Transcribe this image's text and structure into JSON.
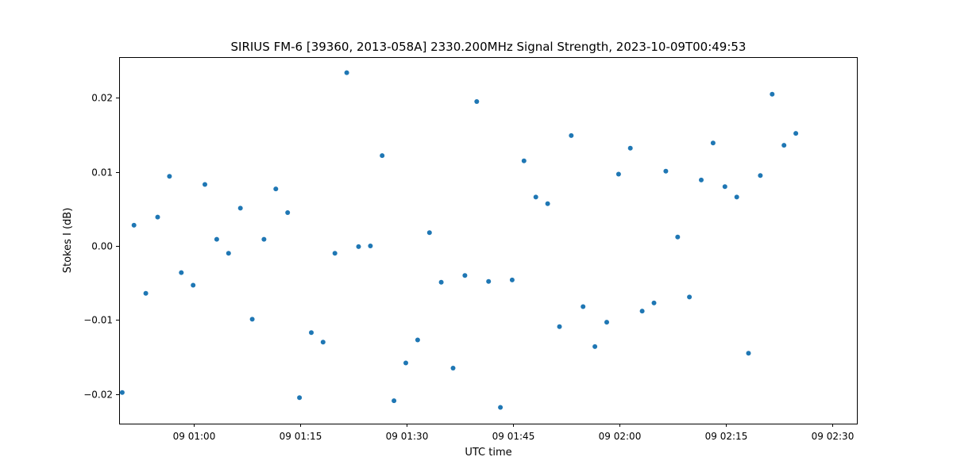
{
  "chart_data": {
    "type": "scatter",
    "title": "SIRIUS FM-6 [39360, 2013-058A] 2330.200MHz Signal Strength, 2023-10-09T00:49:53",
    "xlabel": "UTC time",
    "ylabel": "Stokes I (dB)",
    "xlim": [
      "2023-10-09T00:49:27",
      "2023-10-09T02:33:30"
    ],
    "ylim": [
      -0.024,
      0.0255
    ],
    "x_ticks": [
      {
        "value": "2023-10-09T01:00:00",
        "label": "09 01:00"
      },
      {
        "value": "2023-10-09T01:15:00",
        "label": "09 01:15"
      },
      {
        "value": "2023-10-09T01:30:00",
        "label": "09 01:30"
      },
      {
        "value": "2023-10-09T01:45:00",
        "label": "09 01:45"
      },
      {
        "value": "2023-10-09T02:00:00",
        "label": "09 02:00"
      },
      {
        "value": "2023-10-09T02:15:00",
        "label": "09 02:15"
      },
      {
        "value": "2023-10-09T02:30:00",
        "label": "09 02:30"
      }
    ],
    "y_ticks": [
      {
        "value": -0.02,
        "label": "−0.02"
      },
      {
        "value": -0.01,
        "label": "−0.01"
      },
      {
        "value": 0.0,
        "label": "0.00"
      },
      {
        "value": 0.01,
        "label": "0.01"
      },
      {
        "value": 0.02,
        "label": "0.02"
      }
    ],
    "grid": false,
    "color": "#1f77b4",
    "points": [
      {
        "x": "2023-10-09T00:49:53",
        "y": -0.0198
      },
      {
        "x": "2023-10-09T00:51:33",
        "y": 0.0028
      },
      {
        "x": "2023-10-09T00:53:13",
        "y": -0.0064
      },
      {
        "x": "2023-10-09T00:54:53",
        "y": 0.0039
      },
      {
        "x": "2023-10-09T00:56:33",
        "y": 0.0094
      },
      {
        "x": "2023-10-09T00:58:13",
        "y": -0.0036
      },
      {
        "x": "2023-10-09T00:59:53",
        "y": -0.0053
      },
      {
        "x": "2023-10-09T01:01:33",
        "y": 0.0083
      },
      {
        "x": "2023-10-09T01:03:13",
        "y": 0.0009
      },
      {
        "x": "2023-10-09T01:04:53",
        "y": -0.001
      },
      {
        "x": "2023-10-09T01:06:33",
        "y": 0.0051
      },
      {
        "x": "2023-10-09T01:08:13",
        "y": -0.0099
      },
      {
        "x": "2023-10-09T01:09:53",
        "y": 0.0009
      },
      {
        "x": "2023-10-09T01:11:33",
        "y": 0.0077
      },
      {
        "x": "2023-10-09T01:13:13",
        "y": 0.0045
      },
      {
        "x": "2023-10-09T01:14:53",
        "y": -0.0205
      },
      {
        "x": "2023-10-09T01:16:33",
        "y": -0.0117
      },
      {
        "x": "2023-10-09T01:18:13",
        "y": -0.013
      },
      {
        "x": "2023-10-09T01:19:53",
        "y": -0.001
      },
      {
        "x": "2023-10-09T01:21:33",
        "y": 0.0234
      },
      {
        "x": "2023-10-09T01:23:13",
        "y": -0.0001
      },
      {
        "x": "2023-10-09T01:24:53",
        "y": 0.0
      },
      {
        "x": "2023-10-09T01:26:33",
        "y": 0.0122
      },
      {
        "x": "2023-10-09T01:28:13",
        "y": -0.0209
      },
      {
        "x": "2023-10-09T01:29:53",
        "y": -0.0158
      },
      {
        "x": "2023-10-09T01:31:33",
        "y": -0.0127
      },
      {
        "x": "2023-10-09T01:33:13",
        "y": 0.0018
      },
      {
        "x": "2023-10-09T01:34:53",
        "y": -0.0049
      },
      {
        "x": "2023-10-09T01:36:33",
        "y": -0.0165
      },
      {
        "x": "2023-10-09T01:38:13",
        "y": -0.004
      },
      {
        "x": "2023-10-09T01:39:53",
        "y": 0.0195
      },
      {
        "x": "2023-10-09T01:41:33",
        "y": -0.0048
      },
      {
        "x": "2023-10-09T01:43:13",
        "y": -0.0218
      },
      {
        "x": "2023-10-09T01:44:53",
        "y": -0.0046
      },
      {
        "x": "2023-10-09T01:46:33",
        "y": 0.0115
      },
      {
        "x": "2023-10-09T01:48:13",
        "y": 0.0066
      },
      {
        "x": "2023-10-09T01:49:53",
        "y": 0.0057
      },
      {
        "x": "2023-10-09T01:51:33",
        "y": -0.0109
      },
      {
        "x": "2023-10-09T01:53:13",
        "y": 0.0149
      },
      {
        "x": "2023-10-09T01:54:53",
        "y": -0.0082
      },
      {
        "x": "2023-10-09T01:56:33",
        "y": -0.0136
      },
      {
        "x": "2023-10-09T01:58:13",
        "y": -0.0103
      },
      {
        "x": "2023-10-09T01:59:53",
        "y": 0.0097
      },
      {
        "x": "2023-10-09T02:01:33",
        "y": 0.0132
      },
      {
        "x": "2023-10-09T02:03:13",
        "y": -0.0088
      },
      {
        "x": "2023-10-09T02:04:53",
        "y": -0.0077
      },
      {
        "x": "2023-10-09T02:06:33",
        "y": 0.0101
      },
      {
        "x": "2023-10-09T02:08:13",
        "y": 0.0012
      },
      {
        "x": "2023-10-09T02:09:53",
        "y": -0.0069
      },
      {
        "x": "2023-10-09T02:11:33",
        "y": 0.0089
      },
      {
        "x": "2023-10-09T02:13:13",
        "y": 0.0139
      },
      {
        "x": "2023-10-09T02:14:53",
        "y": 0.008
      },
      {
        "x": "2023-10-09T02:16:33",
        "y": 0.0066
      },
      {
        "x": "2023-10-09T02:18:13",
        "y": -0.0145
      },
      {
        "x": "2023-10-09T02:19:53",
        "y": 0.0095
      },
      {
        "x": "2023-10-09T02:21:33",
        "y": 0.0205
      },
      {
        "x": "2023-10-09T02:23:13",
        "y": 0.0136
      },
      {
        "x": "2023-10-09T02:24:53",
        "y": 0.0152
      }
    ]
  }
}
